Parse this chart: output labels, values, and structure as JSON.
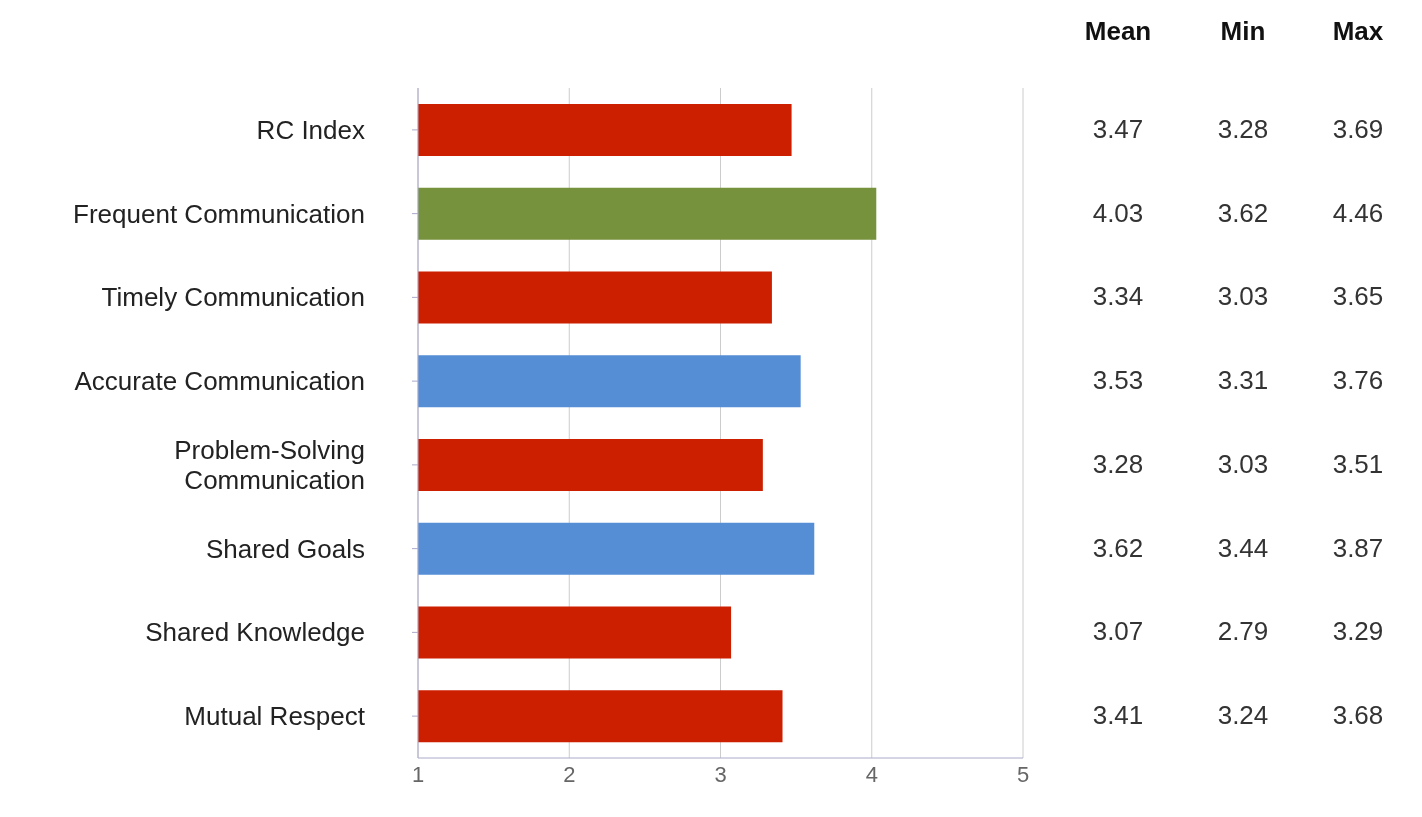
{
  "chart_data": {
    "type": "bar",
    "orientation": "horizontal",
    "categories": [
      "RC Index",
      "Frequent Communication",
      "Timely Communication",
      "Accurate Communication",
      "Problem-Solving Communication",
      "Shared Goals",
      "Shared Knowledge",
      "Mutual Respect"
    ],
    "series": [
      {
        "name": "Mean",
        "colors": [
          "#cc1f00",
          "#76923c",
          "#cc1f00",
          "#558ed5",
          "#cc1f00",
          "#558ed5",
          "#cc1f00",
          "#cc1f00"
        ],
        "values": [
          3.47,
          4.03,
          3.34,
          3.53,
          3.28,
          3.62,
          3.07,
          3.41
        ]
      }
    ],
    "data_labels": true,
    "annotations": [
      "Min",
      "Max",
      "3.28",
      "3.69",
      "3.62",
      "4.46",
      "3.03",
      "3.65",
      "3.31",
      "3.76",
      "3.03",
      "3.51",
      "3.44",
      "3.87",
      "2.79",
      "3.29",
      "3.24",
      "3.68"
    ],
    "xlim": [
      1,
      5
    ],
    "xticks": [
      1,
      2,
      3,
      4,
      5
    ],
    "grid": "x"
  }
}
